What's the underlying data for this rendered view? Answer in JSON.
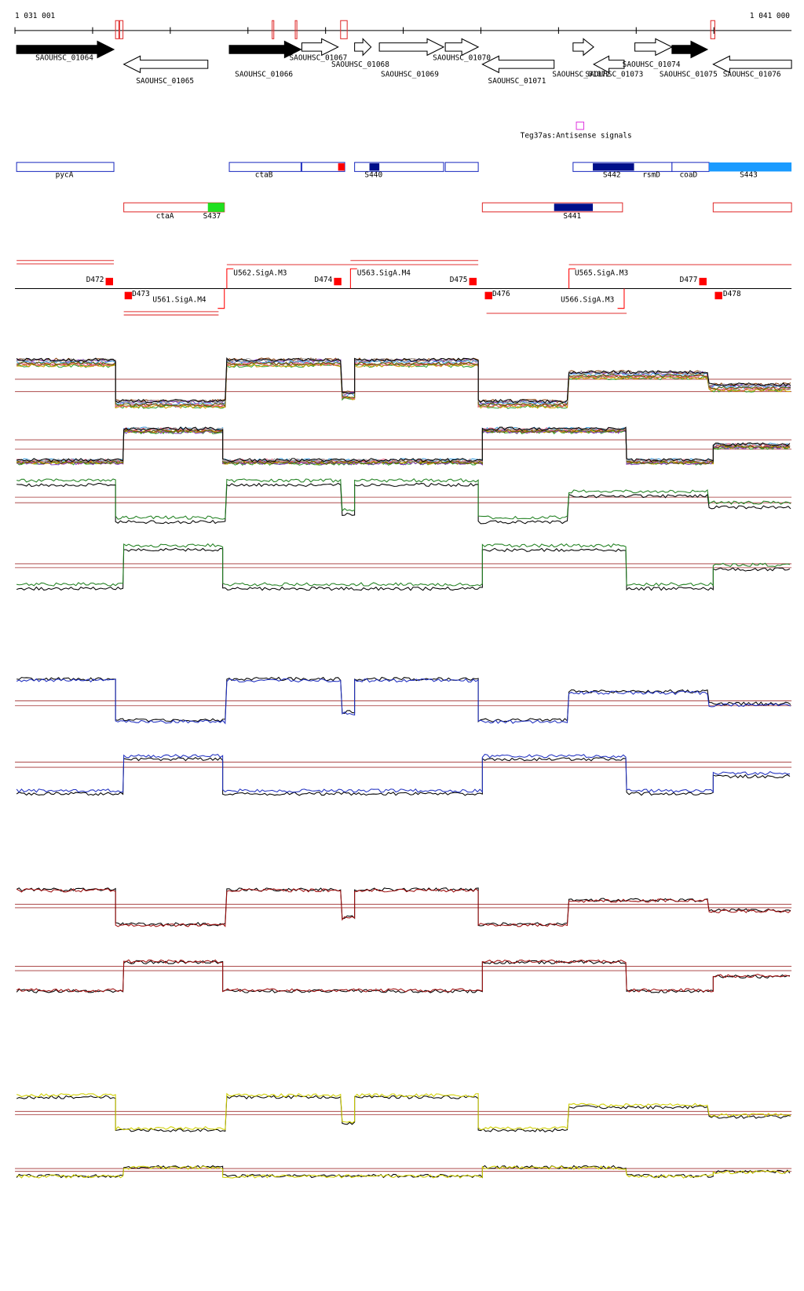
{
  "ruler": {
    "start": "1 031 001",
    "end": "1 041 000"
  },
  "genes": [
    "SAOUHSC_01064",
    "SAOUHSC_01065",
    "SAOUHSC_01066",
    "SAOUHSC_01067",
    "SAOUHSC_01068",
    "SAOUHSC_01069",
    "SAOUHSC_01070",
    "SAOUHSC_01071",
    "SAOUHSC_01072",
    "SAOUHSC_01073",
    "SAOUHSC_01074",
    "SAOUHSC_01075",
    "SAOUHSC_01076"
  ],
  "antisense_label": "Teg37as:Antisense signals",
  "regions_top": [
    "pycA",
    "ctaB",
    "S440",
    "S442",
    "rsmD",
    "coaD",
    "S443"
  ],
  "regions_bottom": [
    "ctaA",
    "S437",
    "S441"
  ],
  "promoters": [
    "D472",
    "D473",
    "U561.SigA.M4",
    "U562.SigA.M3",
    "D474",
    "U563.SigA.M4",
    "D475",
    "D476",
    "U565.SigA.M3",
    "U566.SigA.M3",
    "D477",
    "D478"
  ]
}
